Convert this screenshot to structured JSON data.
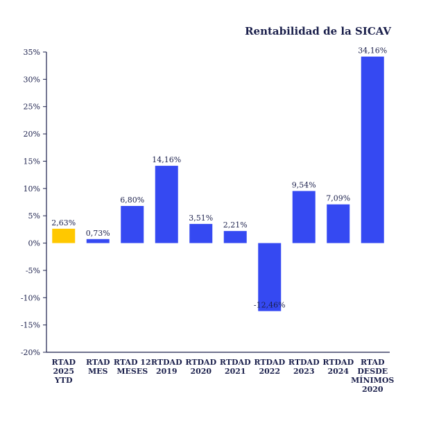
{
  "chart_data": {
    "type": "bar",
    "title": "Rentabilidad de la SICAV",
    "xlabel": "",
    "ylabel": "",
    "ylim": [
      -20,
      35
    ],
    "yticks": [
      35,
      30,
      25,
      20,
      15,
      10,
      5,
      0,
      -5,
      -10,
      -15,
      -20
    ],
    "ytick_labels": [
      "35%",
      "30%",
      "25%",
      "20%",
      "15%",
      "10%",
      "5%",
      "0%",
      "-5%",
      "-10%",
      "-15%",
      "-20%"
    ],
    "grid": false,
    "categories": [
      [
        "RTAD",
        "2025",
        "YTD"
      ],
      [
        "RTAD",
        "MES"
      ],
      [
        "RTAD 12",
        "MESES"
      ],
      [
        "RTDAD",
        "2019"
      ],
      [
        "RTDAD",
        "2020"
      ],
      [
        "RTDAD",
        "2021"
      ],
      [
        "RTDAD",
        "2022"
      ],
      [
        "RTDAD",
        "2023"
      ],
      [
        "RTDAD",
        "2024"
      ],
      [
        "RTAD",
        "DESDE",
        "MÍNIMOS",
        "2020"
      ]
    ],
    "values": [
      2.63,
      0.73,
      6.8,
      14.16,
      3.51,
      2.21,
      -12.46,
      9.54,
      7.09,
      34.16
    ],
    "data_labels": [
      "2,63%",
      "0,73%",
      "6,80%",
      "14,16%",
      "3,51%",
      "2,21%",
      "-12,46%",
      "9,54%",
      "7,09%",
      "34,16%"
    ],
    "bar_colors": [
      "#ffc800",
      "#3549f2",
      "#3549f2",
      "#3549f2",
      "#3549f2",
      "#3549f2",
      "#3549f2",
      "#3549f2",
      "#3549f2",
      "#3549f2"
    ],
    "axis_color": "#1a1f4b",
    "text_color": "#1a1f4b"
  }
}
